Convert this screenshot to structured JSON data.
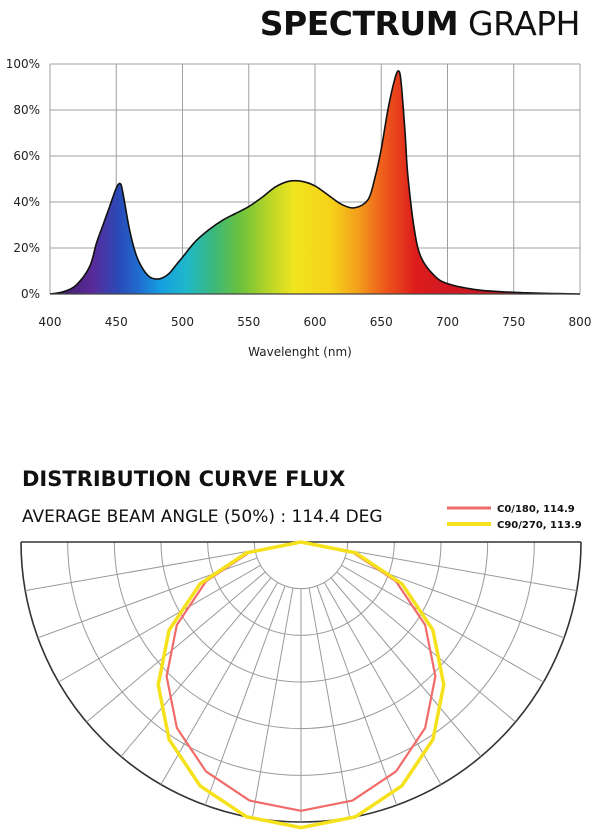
{
  "spectrum": {
    "title_bold": "SPECTRUM",
    "title_rest": "GRAPH"
  },
  "distribution": {
    "title": "DISTRIBUTION CURVE FLUX",
    "subtitle": "AVERAGE BEAM ANGLE  (50%) : 114.4 DEG"
  },
  "colors": {
    "c0": "#f26b6b",
    "c90": "#f5e11c",
    "grid": "#9a9a9a",
    "curve": "#111111"
  },
  "chart_data": [
    {
      "type": "area",
      "xlabel": "Wavelenght (nm)",
      "ylabel": "",
      "xlim": [
        400,
        800
      ],
      "ylim": [
        0,
        100
      ],
      "x_ticks": [
        400,
        450,
        500,
        550,
        600,
        650,
        700,
        750,
        800
      ],
      "y_ticks": [
        "0%",
        "20%",
        "40%",
        "60%",
        "80%",
        "100%"
      ],
      "grid": true,
      "fill": "visible spectrum gradient",
      "x": [
        400,
        410,
        420,
        430,
        435,
        440,
        445,
        450,
        453,
        455,
        460,
        465,
        470,
        475,
        480,
        485,
        490,
        495,
        500,
        510,
        520,
        530,
        540,
        550,
        560,
        570,
        580,
        590,
        600,
        610,
        620,
        630,
        640,
        645,
        650,
        655,
        660,
        663,
        665,
        668,
        670,
        675,
        680,
        690,
        700,
        720,
        740,
        760,
        780,
        800
      ],
      "y": [
        0,
        1,
        4,
        12,
        22,
        30,
        38,
        46,
        48,
        44,
        28,
        17,
        11,
        7.5,
        6.5,
        7,
        9,
        12.5,
        16,
        23,
        28,
        32,
        35,
        38,
        42,
        46.5,
        49,
        49,
        47,
        43,
        39,
        37.5,
        41,
        50,
        63,
        80,
        93,
        97,
        92,
        70,
        52,
        28,
        16,
        8,
        4.5,
        2,
        1,
        0.5,
        0.2,
        0
      ]
    },
    {
      "type": "polar",
      "legend_position": "top-right",
      "series": [
        {
          "name": "C0/180, 114.9",
          "color": "#f26b6b",
          "radius_fraction": 0.48,
          "sides": 16
        },
        {
          "name": "C90/270, 113.9",
          "color": "#f5e11c",
          "radius_fraction": 0.51,
          "sides": 16
        }
      ]
    }
  ]
}
